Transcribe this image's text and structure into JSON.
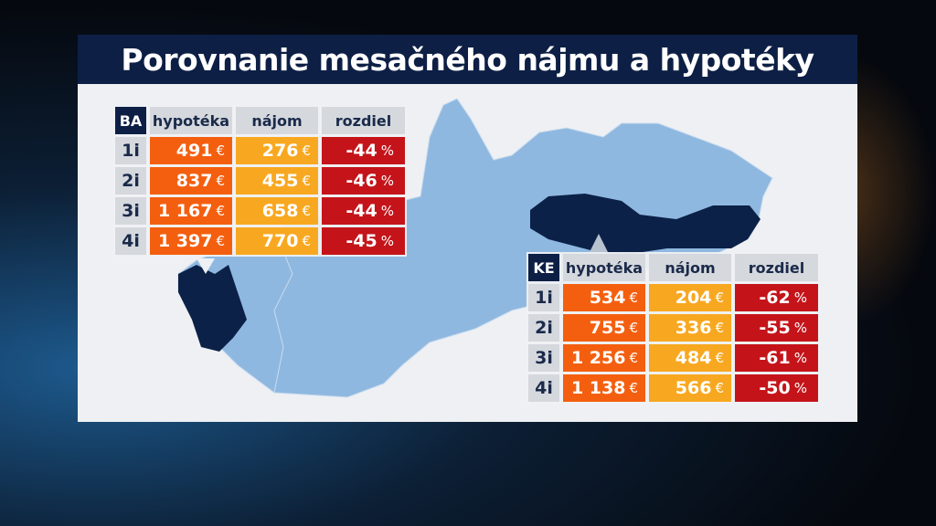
{
  "title": "Porovnanie mesačného nájmu a hypotéky",
  "colors": {
    "title_bg": "#0d1f45",
    "mortgage": "#f45f0f",
    "rent": "#f8a820",
    "diff": "#c4141a",
    "map": "#8fb8e0",
    "region": "#0b2148"
  },
  "headers": {
    "mortgage": "hypotéka",
    "rent": "nájom",
    "diff": "rozdiel"
  },
  "currency": "€",
  "percent": "%",
  "tables": [
    {
      "code": "BA",
      "rows": [
        {
          "rooms": "1i",
          "mortgage": "491",
          "rent": "276",
          "diff": "-44"
        },
        {
          "rooms": "2i",
          "mortgage": "837",
          "rent": "455",
          "diff": "-46"
        },
        {
          "rooms": "3i",
          "mortgage": "1 167",
          "rent": "658",
          "diff": "-44"
        },
        {
          "rooms": "4i",
          "mortgage": "1 397",
          "rent": "770",
          "diff": "-45"
        }
      ]
    },
    {
      "code": "KE",
      "rows": [
        {
          "rooms": "1i",
          "mortgage": "534",
          "rent": "204",
          "diff": "-62"
        },
        {
          "rooms": "2i",
          "mortgage": "755",
          "rent": "336",
          "diff": "-55"
        },
        {
          "rooms": "3i",
          "mortgage": "1 256",
          "rent": "484",
          "diff": "-61"
        },
        {
          "rooms": "4i",
          "mortgage": "1 138",
          "rent": "566",
          "diff": "-50"
        }
      ]
    }
  ]
}
